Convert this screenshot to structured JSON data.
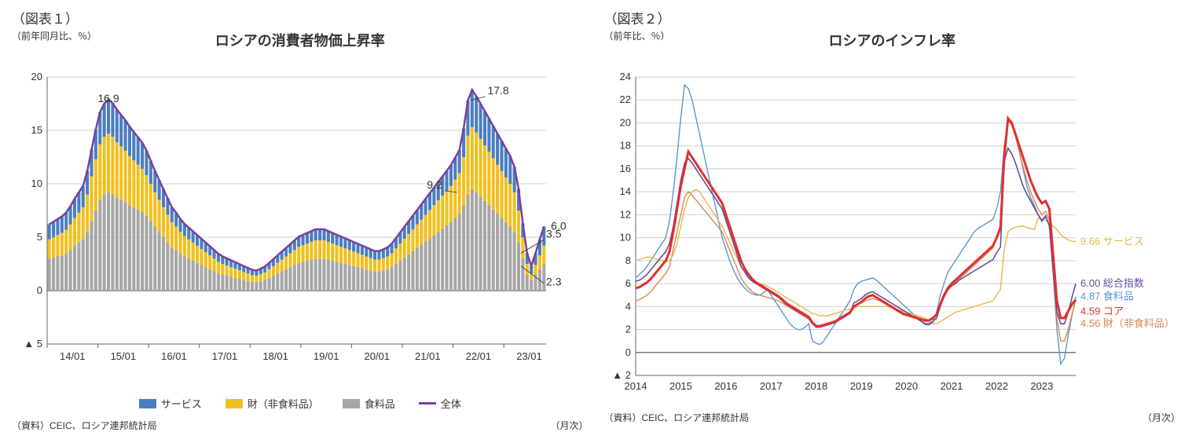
{
  "chart1": {
    "type": "stacked-bar-with-line",
    "figure_label": "（図表１）",
    "title": "ロシアの消費者物価上昇率",
    "y_axis_label": "（前年同月比、％）",
    "x_axis_unit": "（月次）",
    "source": "（資料）CEIC、ロシア連邦統計局",
    "ylim": [
      -5,
      20
    ],
    "ytick_step": 5,
    "ytick_labels": [
      "▲ 5",
      "0",
      "5",
      "10",
      "15",
      "20"
    ],
    "x_categories": [
      "14/01",
      "15/01",
      "16/01",
      "17/01",
      "18/01",
      "19/01",
      "20/01",
      "21/01",
      "22/01",
      "23/01"
    ],
    "colors": {
      "services": "#4a7ec0",
      "goods": "#f0c020",
      "food": "#a6a6a6",
      "total_line": "#7a3fa0",
      "grid": "#d0d0d0",
      "bg": "#ffffff"
    },
    "legend": {
      "services": "サービス",
      "goods": "財（非食料品）",
      "food": "食料品",
      "total": "全体"
    },
    "annotations": [
      {
        "label": "16.9",
        "x_index": 14,
        "y": 16.9
      },
      {
        "label": "17.8",
        "x_index": 99,
        "y": 17.8
      },
      {
        "label": "9.2",
        "x_index": 97,
        "y": 9.2
      },
      {
        "label": "3.5",
        "x_index": 111,
        "y": 3.5
      },
      {
        "label": "2.3",
        "x_index": 111,
        "y": 2.3
      },
      {
        "label": "6.0",
        "x_index": 114,
        "y": 6.0
      }
    ],
    "series": {
      "food": [
        3.0,
        3.1,
        3.2,
        3.3,
        3.5,
        3.8,
        4.2,
        4.5,
        4.8,
        5.5,
        6.5,
        7.5,
        8.5,
        9.0,
        9.2,
        9.0,
        8.7,
        8.5,
        8.3,
        8.0,
        7.8,
        7.6,
        7.4,
        7.0,
        6.5,
        6.0,
        5.5,
        5.0,
        4.5,
        4.0,
        3.8,
        3.5,
        3.2,
        3.0,
        2.8,
        2.6,
        2.4,
        2.2,
        2.0,
        1.8,
        1.6,
        1.5,
        1.4,
        1.3,
        1.2,
        1.1,
        1.0,
        0.9,
        0.8,
        0.8,
        0.9,
        1.0,
        1.2,
        1.4,
        1.6,
        1.8,
        2.0,
        2.2,
        2.4,
        2.6,
        2.7,
        2.8,
        2.9,
        3.0,
        3.0,
        3.0,
        2.9,
        2.8,
        2.7,
        2.6,
        2.5,
        2.4,
        2.3,
        2.2,
        2.1,
        2.0,
        1.9,
        1.8,
        1.8,
        1.9,
        2.0,
        2.2,
        2.5,
        2.8,
        3.1,
        3.4,
        3.7,
        4.0,
        4.3,
        4.6,
        4.9,
        5.2,
        5.5,
        5.8,
        6.1,
        6.4,
        6.8,
        7.2,
        8.0,
        9.0,
        9.5,
        9.2,
        8.8,
        8.4,
        8.0,
        7.6,
        7.2,
        6.8,
        6.4,
        6.0,
        5.5,
        4.5,
        3.0,
        1.5,
        1.0,
        1.5,
        2.0,
        2.5
      ],
      "goods": [
        1.8,
        1.9,
        2.0,
        2.1,
        2.2,
        2.4,
        2.6,
        2.8,
        3.0,
        3.5,
        4.2,
        4.8,
        5.2,
        5.4,
        5.5,
        5.4,
        5.2,
        5.0,
        4.8,
        4.6,
        4.4,
        4.2,
        4.0,
        3.8,
        3.5,
        3.2,
        3.0,
        2.8,
        2.6,
        2.4,
        2.2,
        2.0,
        1.9,
        1.8,
        1.7,
        1.6,
        1.5,
        1.4,
        1.3,
        1.2,
        1.1,
        1.0,
        0.95,
        0.9,
        0.85,
        0.8,
        0.75,
        0.7,
        0.65,
        0.6,
        0.65,
        0.7,
        0.8,
        0.9,
        1.0,
        1.1,
        1.2,
        1.3,
        1.4,
        1.5,
        1.55,
        1.6,
        1.65,
        1.7,
        1.7,
        1.7,
        1.65,
        1.6,
        1.55,
        1.5,
        1.45,
        1.4,
        1.35,
        1.3,
        1.25,
        1.2,
        1.15,
        1.1,
        1.1,
        1.15,
        1.2,
        1.3,
        1.45,
        1.6,
        1.75,
        1.9,
        2.05,
        2.2,
        2.35,
        2.5,
        2.65,
        2.8,
        2.95,
        3.1,
        3.25,
        3.4,
        3.6,
        3.8,
        4.5,
        5.5,
        5.8,
        5.6,
        5.4,
        5.2,
        5.0,
        4.8,
        4.6,
        4.4,
        4.2,
        4.0,
        3.7,
        3.0,
        2.0,
        1.0,
        0.6,
        0.9,
        1.3,
        1.7
      ],
      "services": [
        1.4,
        1.45,
        1.5,
        1.55,
        1.6,
        1.7,
        1.8,
        1.9,
        2.0,
        2.2,
        2.5,
        2.8,
        3.0,
        3.1,
        3.2,
        3.15,
        3.05,
        2.95,
        2.85,
        2.75,
        2.65,
        2.55,
        2.45,
        2.3,
        2.15,
        2.0,
        1.85,
        1.7,
        1.55,
        1.4,
        1.3,
        1.2,
        1.15,
        1.1,
        1.05,
        1.0,
        0.95,
        0.9,
        0.85,
        0.8,
        0.75,
        0.7,
        0.67,
        0.64,
        0.61,
        0.58,
        0.55,
        0.52,
        0.5,
        0.48,
        0.5,
        0.55,
        0.6,
        0.65,
        0.7,
        0.75,
        0.8,
        0.85,
        0.9,
        0.95,
        0.98,
        1.0,
        1.02,
        1.04,
        1.04,
        1.04,
        1.02,
        1.0,
        0.98,
        0.96,
        0.94,
        0.92,
        0.9,
        0.88,
        0.86,
        0.84,
        0.82,
        0.8,
        0.8,
        0.82,
        0.85,
        0.9,
        0.97,
        1.05,
        1.13,
        1.2,
        1.27,
        1.35,
        1.42,
        1.5,
        1.57,
        1.65,
        1.72,
        1.8,
        1.87,
        1.95,
        2.05,
        2.15,
        2.7,
        3.3,
        3.5,
        3.4,
        3.3,
        3.2,
        3.1,
        3.0,
        2.9,
        2.8,
        2.7,
        2.6,
        2.4,
        2.0,
        1.3,
        1.0,
        0.7,
        1.1,
        1.5,
        1.8
      ]
    }
  },
  "chart2": {
    "type": "line",
    "figure_label": "（図表２）",
    "title": "ロシアのインフレ率",
    "y_axis_label": "（前年比、％）",
    "x_axis_unit": "（月次）",
    "source": "（資料）CEIC、ロシア連邦統計局",
    "ylim": [
      -2,
      24
    ],
    "ytick_step": 2,
    "ytick_labels": [
      "▲ 2",
      "0",
      "2",
      "4",
      "6",
      "8",
      "10",
      "12",
      "14",
      "16",
      "18",
      "20",
      "22",
      "24"
    ],
    "x_categories": [
      "2014",
      "2015",
      "2016",
      "2017",
      "2018",
      "2019",
      "2020",
      "2021",
      "2022",
      "2023"
    ],
    "colors": {
      "services": "#e8b848",
      "headline": "#6a4b9a",
      "food": "#5898d4",
      "core": "#e03030",
      "goods": "#d88850",
      "grid": "#d0d0d0",
      "bg": "#ffffff"
    },
    "line_widths": {
      "core": 3.0,
      "headline": 1.6,
      "food": 1.4,
      "goods": 1.4,
      "services": 1.4
    },
    "end_labels": [
      {
        "key": "services",
        "value": "9.66",
        "name": "サービス",
        "color": "#e8b848"
      },
      {
        "key": "headline",
        "value": "6.00",
        "name": "総合指数",
        "color": "#6a4b9a"
      },
      {
        "key": "food",
        "value": "4.87",
        "name": "食料品",
        "color": "#5898d4"
      },
      {
        "key": "core",
        "value": "4.59",
        "name": "コア",
        "color": "#e03030"
      },
      {
        "key": "goods",
        "value": "4.56",
        "name": "財（非食料品）",
        "color": "#d88850"
      }
    ],
    "series": {
      "food": [
        6.5,
        6.8,
        7.1,
        7.5,
        8.0,
        8.5,
        9.0,
        9.5,
        10.0,
        11.5,
        14.0,
        17.0,
        20.5,
        23.3,
        23.0,
        22.0,
        20.5,
        19.0,
        17.5,
        16.0,
        14.5,
        13.0,
        11.5,
        10.0,
        9.0,
        8.0,
        7.2,
        6.5,
        6.0,
        5.6,
        5.3,
        5.1,
        5.0,
        5.0,
        5.2,
        5.5,
        5.0,
        4.5,
        4.0,
        3.5,
        3.0,
        2.5,
        2.2,
        2.0,
        2.0,
        2.2,
        2.5,
        1.0,
        0.8,
        0.7,
        1.0,
        1.5,
        2.0,
        2.5,
        3.0,
        3.5,
        4.0,
        4.5,
        5.5,
        6.0,
        6.2,
        6.3,
        6.4,
        6.5,
        6.3,
        6.0,
        5.7,
        5.4,
        5.1,
        4.8,
        4.5,
        4.2,
        3.9,
        3.6,
        3.3,
        3.0,
        2.7,
        2.4,
        2.4,
        2.6,
        3.5,
        5.0,
        6.0,
        7.0,
        7.5,
        8.0,
        8.5,
        9.0,
        9.5,
        10.0,
        10.5,
        10.8,
        11.0,
        11.2,
        11.4,
        11.6,
        12.5,
        14.0,
        18.0,
        20.3,
        20.0,
        19.0,
        17.5,
        16.0,
        14.5,
        13.5,
        12.8,
        12.0,
        11.4,
        11.8,
        11.2,
        7.0,
        2.0,
        -1.0,
        -0.5,
        1.5,
        3.2,
        4.87
      ],
      "headline": [
        6.2,
        6.3,
        6.5,
        6.8,
        7.2,
        7.6,
        8.0,
        8.4,
        8.8,
        9.5,
        11.0,
        13.0,
        15.0,
        16.5,
        16.9,
        16.5,
        16.0,
        15.5,
        15.0,
        14.5,
        14.0,
        13.5,
        13.0,
        12.5,
        11.5,
        10.5,
        9.5,
        8.5,
        7.5,
        7.0,
        6.5,
        6.2,
        6.0,
        5.8,
        5.6,
        5.4,
        5.2,
        5.0,
        4.8,
        4.5,
        4.2,
        4.0,
        3.8,
        3.6,
        3.4,
        3.2,
        3.0,
        2.5,
        2.2,
        2.2,
        2.3,
        2.4,
        2.5,
        2.6,
        2.8,
        3.0,
        3.2,
        3.4,
        4.3,
        4.5,
        4.7,
        5.0,
        5.2,
        5.3,
        5.1,
        4.9,
        4.7,
        4.5,
        4.3,
        4.1,
        3.9,
        3.7,
        3.5,
        3.3,
        3.1,
        2.9,
        2.7,
        2.5,
        2.5,
        2.7,
        3.0,
        4.0,
        4.9,
        5.5,
        5.8,
        6.0,
        6.3,
        6.5,
        6.7,
        6.9,
        7.1,
        7.3,
        7.5,
        7.7,
        7.9,
        8.1,
        8.7,
        9.2,
        16.7,
        17.8,
        17.3,
        16.5,
        15.5,
        14.5,
        13.8,
        13.2,
        12.6,
        12.0,
        11.5,
        11.9,
        11.0,
        7.0,
        3.5,
        2.5,
        2.5,
        3.5,
        4.8,
        6.0
      ],
      "core": [
        5.6,
        5.7,
        5.9,
        6.1,
        6.4,
        6.8,
        7.2,
        7.6,
        8.0,
        8.8,
        10.5,
        12.5,
        14.5,
        16.0,
        17.5,
        17.0,
        16.5,
        16.0,
        15.5,
        15.0,
        14.5,
        14.0,
        13.5,
        13.0,
        12.0,
        11.0,
        10.0,
        9.0,
        8.0,
        7.3,
        6.8,
        6.4,
        6.1,
        5.9,
        5.7,
        5.5,
        5.3,
        5.1,
        4.9,
        4.6,
        4.3,
        4.1,
        3.9,
        3.7,
        3.5,
        3.3,
        3.1,
        2.6,
        2.3,
        2.3,
        2.4,
        2.5,
        2.6,
        2.7,
        2.9,
        3.1,
        3.3,
        3.5,
        4.0,
        4.2,
        4.4,
        4.7,
        4.9,
        5.0,
        4.8,
        4.6,
        4.4,
        4.2,
        4.0,
        3.8,
        3.6,
        3.4,
        3.3,
        3.2,
        3.1,
        3.0,
        2.9,
        2.8,
        2.8,
        3.0,
        3.3,
        4.2,
        5.0,
        5.6,
        6.0,
        6.3,
        6.6,
        6.9,
        7.2,
        7.5,
        7.8,
        8.1,
        8.4,
        8.7,
        9.0,
        9.3,
        10.0,
        10.9,
        17.0,
        20.4,
        20.0,
        19.0,
        18.0,
        17.0,
        16.0,
        15.0,
        14.2,
        13.5,
        13.0,
        13.2,
        12.5,
        8.5,
        4.5,
        3.0,
        3.0,
        3.6,
        4.2,
        4.59
      ],
      "goods": [
        4.5,
        4.6,
        4.8,
        5.0,
        5.3,
        5.7,
        6.1,
        6.5,
        6.9,
        7.5,
        9.0,
        10.5,
        12.0,
        13.5,
        14.0,
        13.7,
        13.3,
        12.9,
        12.5,
        12.1,
        11.7,
        11.3,
        10.9,
        10.5,
        9.7,
        8.9,
        8.1,
        7.3,
        6.5,
        6.0,
        5.6,
        5.3,
        5.1,
        5.0,
        4.9,
        4.8,
        4.7,
        4.6,
        4.5,
        4.3,
        4.1,
        3.9,
        3.7,
        3.5,
        3.3,
        3.1,
        2.9,
        2.5,
        2.3,
        2.3,
        2.4,
        2.5,
        2.6,
        2.7,
        2.9,
        3.1,
        3.3,
        3.5,
        4.0,
        4.2,
        4.3,
        4.5,
        4.6,
        4.7,
        4.6,
        4.5,
        4.3,
        4.1,
        3.9,
        3.7,
        3.5,
        3.3,
        3.2,
        3.1,
        3.0,
        2.9,
        2.8,
        2.7,
        2.7,
        2.9,
        3.2,
        4.0,
        4.8,
        5.4,
        5.8,
        6.1,
        6.4,
        6.7,
        7.0,
        7.3,
        7.6,
        7.9,
        8.2,
        8.5,
        8.8,
        9.1,
        10.0,
        11.0,
        18.0,
        20.2,
        19.8,
        18.8,
        17.5,
        16.2,
        15.0,
        14.0,
        13.2,
        12.5,
        12.0,
        12.3,
        11.5,
        7.5,
        3.0,
        1.0,
        1.0,
        2.0,
        3.3,
        4.56
      ],
      "services": [
        8.0,
        8.1,
        8.2,
        8.3,
        8.3,
        8.2,
        8.1,
        8.0,
        7.9,
        8.0,
        8.5,
        9.5,
        11.0,
        12.5,
        13.5,
        14.0,
        14.2,
        14.0,
        13.5,
        13.0,
        12.5,
        12.0,
        11.5,
        11.0,
        10.3,
        9.6,
        8.9,
        8.2,
        7.5,
        7.0,
        6.6,
        6.3,
        6.1,
        6.0,
        5.9,
        5.8,
        5.6,
        5.4,
        5.2,
        5.0,
        4.8,
        4.6,
        4.4,
        4.2,
        4.0,
        3.8,
        3.6,
        3.4,
        3.3,
        3.2,
        3.2,
        3.2,
        3.3,
        3.4,
        3.5,
        3.6,
        3.7,
        3.8,
        3.9,
        4.0,
        4.0,
        4.0,
        4.0,
        4.0,
        4.0,
        4.0,
        4.0,
        4.0,
        3.9,
        3.8,
        3.7,
        3.6,
        3.5,
        3.4,
        3.3,
        3.2,
        3.1,
        3.0,
        2.7,
        2.5,
        2.5,
        2.7,
        2.9,
        3.1,
        3.3,
        3.5,
        3.6,
        3.7,
        3.8,
        3.9,
        4.0,
        4.1,
        4.2,
        4.3,
        4.4,
        4.5,
        5.0,
        5.5,
        9.0,
        10.5,
        10.8,
        10.9,
        11.0,
        11.0,
        10.9,
        10.8,
        10.7,
        11.7,
        11.6,
        11.5,
        11.3,
        11.0,
        10.7,
        10.3,
        10.0,
        9.8,
        9.7,
        9.66
      ]
    }
  }
}
